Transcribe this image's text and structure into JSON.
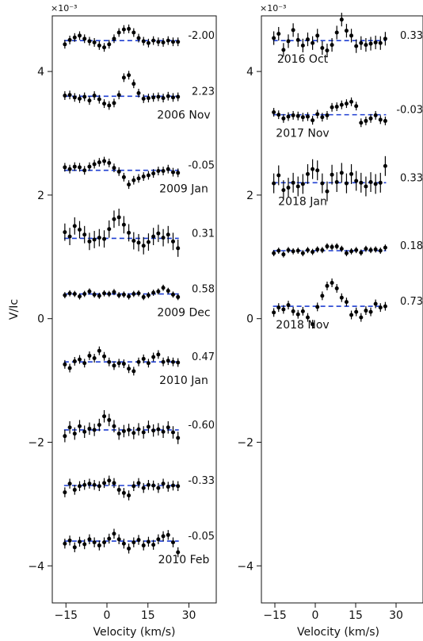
{
  "chart_data": {
    "type": "scatter",
    "ylabel": "V/Ic",
    "xlabel": "Velocity (km/s)",
    "y_scale_label": "×10⁻³",
    "xlim": [
      -20,
      40
    ],
    "ylim": [
      -4.6,
      4.9
    ],
    "xticks": [
      -15,
      0,
      15,
      30
    ],
    "yticks": [
      -4,
      -2,
      0,
      2,
      4
    ],
    "colors": {
      "points": "#000000",
      "baseline": "#1f3fd1"
    },
    "x": [
      -15.4,
      -13.6,
      -11.8,
      -10.0,
      -8.2,
      -6.4,
      -4.6,
      -2.8,
      -1.0,
      0.8,
      2.6,
      4.4,
      6.2,
      8.0,
      9.8,
      11.6,
      13.4,
      15.2,
      17.0,
      18.8,
      20.6,
      22.4,
      24.2,
      26.0
    ],
    "panels": [
      {
        "name": "left",
        "series": [
          {
            "label": "",
            "value_label": "-2.00",
            "baseline": 4.5,
            "points": [
              4.44,
              4.51,
              4.55,
              4.58,
              4.53,
              4.49,
              4.47,
              4.42,
              4.39,
              4.44,
              4.53,
              4.63,
              4.68,
              4.69,
              4.63,
              4.54,
              4.49,
              4.46,
              4.5,
              4.48,
              4.47,
              4.5,
              4.48,
              4.48
            ],
            "errors": [
              0.07,
              0.07,
              0.07,
              0.07,
              0.07,
              0.07,
              0.07,
              0.07,
              0.07,
              0.07,
              0.07,
              0.07,
              0.07,
              0.07,
              0.07,
              0.07,
              0.07,
              0.07,
              0.07,
              0.07,
              0.07,
              0.07,
              0.07,
              0.07
            ]
          },
          {
            "label": "2006 Nov",
            "value_label": "2.23",
            "baseline": 3.6,
            "points": [
              3.61,
              3.62,
              3.58,
              3.56,
              3.59,
              3.53,
              3.61,
              3.55,
              3.48,
              3.45,
              3.49,
              3.62,
              3.9,
              3.94,
              3.8,
              3.65,
              3.56,
              3.57,
              3.58,
              3.59,
              3.57,
              3.6,
              3.58,
              3.59
            ],
            "errors": [
              0.07,
              0.07,
              0.07,
              0.07,
              0.07,
              0.07,
              0.07,
              0.07,
              0.07,
              0.07,
              0.07,
              0.07,
              0.07,
              0.07,
              0.07,
              0.07,
              0.07,
              0.07,
              0.07,
              0.07,
              0.07,
              0.07,
              0.07,
              0.07
            ]
          },
          {
            "label": "2009 Jan",
            "value_label": "-0.05",
            "baseline": 2.4,
            "points": [
              2.45,
              2.42,
              2.46,
              2.45,
              2.4,
              2.46,
              2.5,
              2.53,
              2.55,
              2.52,
              2.44,
              2.38,
              2.29,
              2.17,
              2.24,
              2.27,
              2.3,
              2.32,
              2.35,
              2.39,
              2.39,
              2.42,
              2.37,
              2.36
            ],
            "errors": [
              0.07,
              0.07,
              0.07,
              0.07,
              0.07,
              0.07,
              0.07,
              0.07,
              0.07,
              0.07,
              0.07,
              0.07,
              0.07,
              0.07,
              0.07,
              0.07,
              0.07,
              0.07,
              0.07,
              0.07,
              0.07,
              0.07,
              0.07,
              0.07
            ]
          },
          {
            "label": "",
            "value_label": "0.31",
            "baseline": 1.3,
            "points": [
              1.4,
              1.33,
              1.5,
              1.44,
              1.36,
              1.25,
              1.28,
              1.31,
              1.29,
              1.45,
              1.61,
              1.64,
              1.52,
              1.39,
              1.26,
              1.23,
              1.18,
              1.24,
              1.33,
              1.38,
              1.31,
              1.36,
              1.25,
              1.14
            ],
            "errors": [
              0.14,
              0.14,
              0.14,
              0.14,
              0.14,
              0.14,
              0.14,
              0.14,
              0.14,
              0.14,
              0.14,
              0.14,
              0.14,
              0.14,
              0.14,
              0.14,
              0.14,
              0.14,
              0.14,
              0.14,
              0.14,
              0.14,
              0.14,
              0.14
            ]
          },
          {
            "label": "2009 Dec",
            "value_label": "0.58",
            "baseline": 0.4,
            "points": [
              0.38,
              0.41,
              0.4,
              0.36,
              0.4,
              0.44,
              0.39,
              0.37,
              0.41,
              0.4,
              0.43,
              0.38,
              0.39,
              0.36,
              0.4,
              0.41,
              0.35,
              0.38,
              0.42,
              0.44,
              0.5,
              0.45,
              0.39,
              0.35
            ],
            "errors": [
              0.05,
              0.05,
              0.05,
              0.05,
              0.05,
              0.05,
              0.05,
              0.05,
              0.05,
              0.05,
              0.05,
              0.05,
              0.05,
              0.05,
              0.05,
              0.05,
              0.05,
              0.05,
              0.05,
              0.05,
              0.05,
              0.05,
              0.05,
              0.05
            ]
          },
          {
            "label": "2010 Jan",
            "value_label": "0.47",
            "baseline": -0.7,
            "points": [
              -0.74,
              -0.8,
              -0.69,
              -0.66,
              -0.72,
              -0.6,
              -0.64,
              -0.52,
              -0.61,
              -0.7,
              -0.76,
              -0.72,
              -0.73,
              -0.81,
              -0.85,
              -0.7,
              -0.65,
              -0.72,
              -0.62,
              -0.58,
              -0.7,
              -0.68,
              -0.7,
              -0.71
            ],
            "errors": [
              0.07,
              0.07,
              0.07,
              0.07,
              0.07,
              0.07,
              0.07,
              0.07,
              0.07,
              0.07,
              0.07,
              0.07,
              0.07,
              0.07,
              0.07,
              0.07,
              0.07,
              0.07,
              0.07,
              0.07,
              0.07,
              0.07,
              0.07,
              0.07
            ]
          },
          {
            "label": "",
            "value_label": "-0.60",
            "baseline": -1.8,
            "points": [
              -1.9,
              -1.76,
              -1.86,
              -1.74,
              -1.83,
              -1.78,
              -1.8,
              -1.72,
              -1.58,
              -1.64,
              -1.74,
              -1.86,
              -1.82,
              -1.8,
              -1.85,
              -1.79,
              -1.84,
              -1.75,
              -1.81,
              -1.79,
              -1.83,
              -1.76,
              -1.84,
              -1.93
            ],
            "errors": [
              0.1,
              0.1,
              0.1,
              0.1,
              0.1,
              0.1,
              0.1,
              0.1,
              0.1,
              0.1,
              0.1,
              0.1,
              0.1,
              0.1,
              0.1,
              0.1,
              0.1,
              0.1,
              0.1,
              0.1,
              0.1,
              0.1,
              0.1,
              0.1
            ]
          },
          {
            "label": "",
            "value_label": "-0.33",
            "baseline": -2.7,
            "points": [
              -2.81,
              -2.67,
              -2.77,
              -2.71,
              -2.69,
              -2.67,
              -2.69,
              -2.71,
              -2.66,
              -2.62,
              -2.66,
              -2.77,
              -2.82,
              -2.86,
              -2.71,
              -2.66,
              -2.74,
              -2.69,
              -2.7,
              -2.74,
              -2.67,
              -2.72,
              -2.7,
              -2.71
            ],
            "errors": [
              0.08,
              0.08,
              0.08,
              0.08,
              0.08,
              0.08,
              0.08,
              0.08,
              0.08,
              0.08,
              0.08,
              0.08,
              0.08,
              0.08,
              0.08,
              0.08,
              0.08,
              0.08,
              0.08,
              0.08,
              0.08,
              0.08,
              0.08,
              0.08
            ]
          },
          {
            "label": "2010 Feb",
            "value_label": "-0.05",
            "baseline": -3.6,
            "points": [
              -3.64,
              -3.59,
              -3.7,
              -3.61,
              -3.65,
              -3.57,
              -3.62,
              -3.67,
              -3.62,
              -3.56,
              -3.48,
              -3.57,
              -3.64,
              -3.72,
              -3.62,
              -3.58,
              -3.67,
              -3.61,
              -3.66,
              -3.57,
              -3.52,
              -3.5,
              -3.62,
              -3.78
            ],
            "errors": [
              0.08,
              0.08,
              0.08,
              0.08,
              0.08,
              0.08,
              0.08,
              0.08,
              0.08,
              0.08,
              0.08,
              0.08,
              0.08,
              0.08,
              0.08,
              0.08,
              0.08,
              0.08,
              0.08,
              0.08,
              0.08,
              0.08,
              0.08,
              0.08
            ]
          }
        ]
      },
      {
        "name": "right",
        "series": [
          {
            "label": "2016 Oct",
            "value_label": "0.33",
            "baseline": 4.5,
            "points": [
              4.54,
              4.61,
              4.35,
              4.49,
              4.67,
              4.51,
              4.42,
              4.52,
              4.46,
              4.58,
              4.38,
              4.34,
              4.43,
              4.63,
              4.84,
              4.66,
              4.58,
              4.41,
              4.46,
              4.43,
              4.45,
              4.47,
              4.46,
              4.53
            ],
            "errors": [
              0.11,
              0.11,
              0.11,
              0.11,
              0.11,
              0.11,
              0.11,
              0.11,
              0.11,
              0.11,
              0.11,
              0.11,
              0.11,
              0.11,
              0.11,
              0.11,
              0.11,
              0.11,
              0.11,
              0.11,
              0.11,
              0.11,
              0.11,
              0.11
            ]
          },
          {
            "label": "2017 Nov",
            "value_label": "-0.03",
            "baseline": 3.3,
            "points": [
              3.34,
              3.3,
              3.24,
              3.27,
              3.29,
              3.28,
              3.26,
              3.27,
              3.21,
              3.31,
              3.26,
              3.29,
              3.42,
              3.43,
              3.46,
              3.48,
              3.51,
              3.44,
              3.17,
              3.2,
              3.24,
              3.29,
              3.22,
              3.2
            ],
            "errors": [
              0.07,
              0.07,
              0.07,
              0.07,
              0.07,
              0.07,
              0.07,
              0.07,
              0.07,
              0.07,
              0.07,
              0.07,
              0.07,
              0.07,
              0.07,
              0.07,
              0.07,
              0.07,
              0.07,
              0.07,
              0.07,
              0.07,
              0.07,
              0.07
            ]
          },
          {
            "label": "2018 Jan",
            "value_label": "0.33",
            "baseline": 2.2,
            "points": [
              2.19,
              2.32,
              2.08,
              2.12,
              2.2,
              2.14,
              2.18,
              2.34,
              2.42,
              2.4,
              2.19,
              2.06,
              2.33,
              2.21,
              2.36,
              2.19,
              2.34,
              2.23,
              2.2,
              2.14,
              2.21,
              2.18,
              2.2,
              2.47
            ],
            "errors": [
              0.16,
              0.16,
              0.16,
              0.16,
              0.16,
              0.16,
              0.16,
              0.16,
              0.16,
              0.16,
              0.16,
              0.16,
              0.16,
              0.16,
              0.16,
              0.16,
              0.16,
              0.16,
              0.16,
              0.16,
              0.16,
              0.16,
              0.16,
              0.16
            ]
          },
          {
            "label": "",
            "value_label": "0.18",
            "baseline": 1.1,
            "points": [
              1.06,
              1.1,
              1.04,
              1.11,
              1.09,
              1.1,
              1.06,
              1.11,
              1.08,
              1.12,
              1.11,
              1.17,
              1.16,
              1.17,
              1.13,
              1.06,
              1.09,
              1.11,
              1.07,
              1.13,
              1.11,
              1.12,
              1.1,
              1.15
            ],
            "errors": [
              0.05,
              0.05,
              0.05,
              0.05,
              0.05,
              0.05,
              0.05,
              0.05,
              0.05,
              0.05,
              0.05,
              0.05,
              0.05,
              0.05,
              0.05,
              0.05,
              0.05,
              0.05,
              0.05,
              0.05,
              0.05,
              0.05,
              0.05,
              0.05
            ]
          },
          {
            "label": "2018 Nov",
            "value_label": "0.73",
            "baseline": 0.2,
            "points": [
              0.1,
              0.18,
              0.15,
              0.22,
              0.12,
              0.07,
              0.12,
              0.02,
              -0.09,
              0.19,
              0.37,
              0.53,
              0.58,
              0.49,
              0.34,
              0.27,
              0.06,
              0.11,
              0.02,
              0.13,
              0.11,
              0.24,
              0.18,
              0.2
            ],
            "errors": [
              0.07,
              0.07,
              0.07,
              0.07,
              0.07,
              0.07,
              0.07,
              0.07,
              0.07,
              0.07,
              0.07,
              0.07,
              0.07,
              0.07,
              0.07,
              0.07,
              0.07,
              0.07,
              0.07,
              0.07,
              0.07,
              0.07,
              0.07,
              0.07
            ]
          }
        ]
      }
    ]
  }
}
